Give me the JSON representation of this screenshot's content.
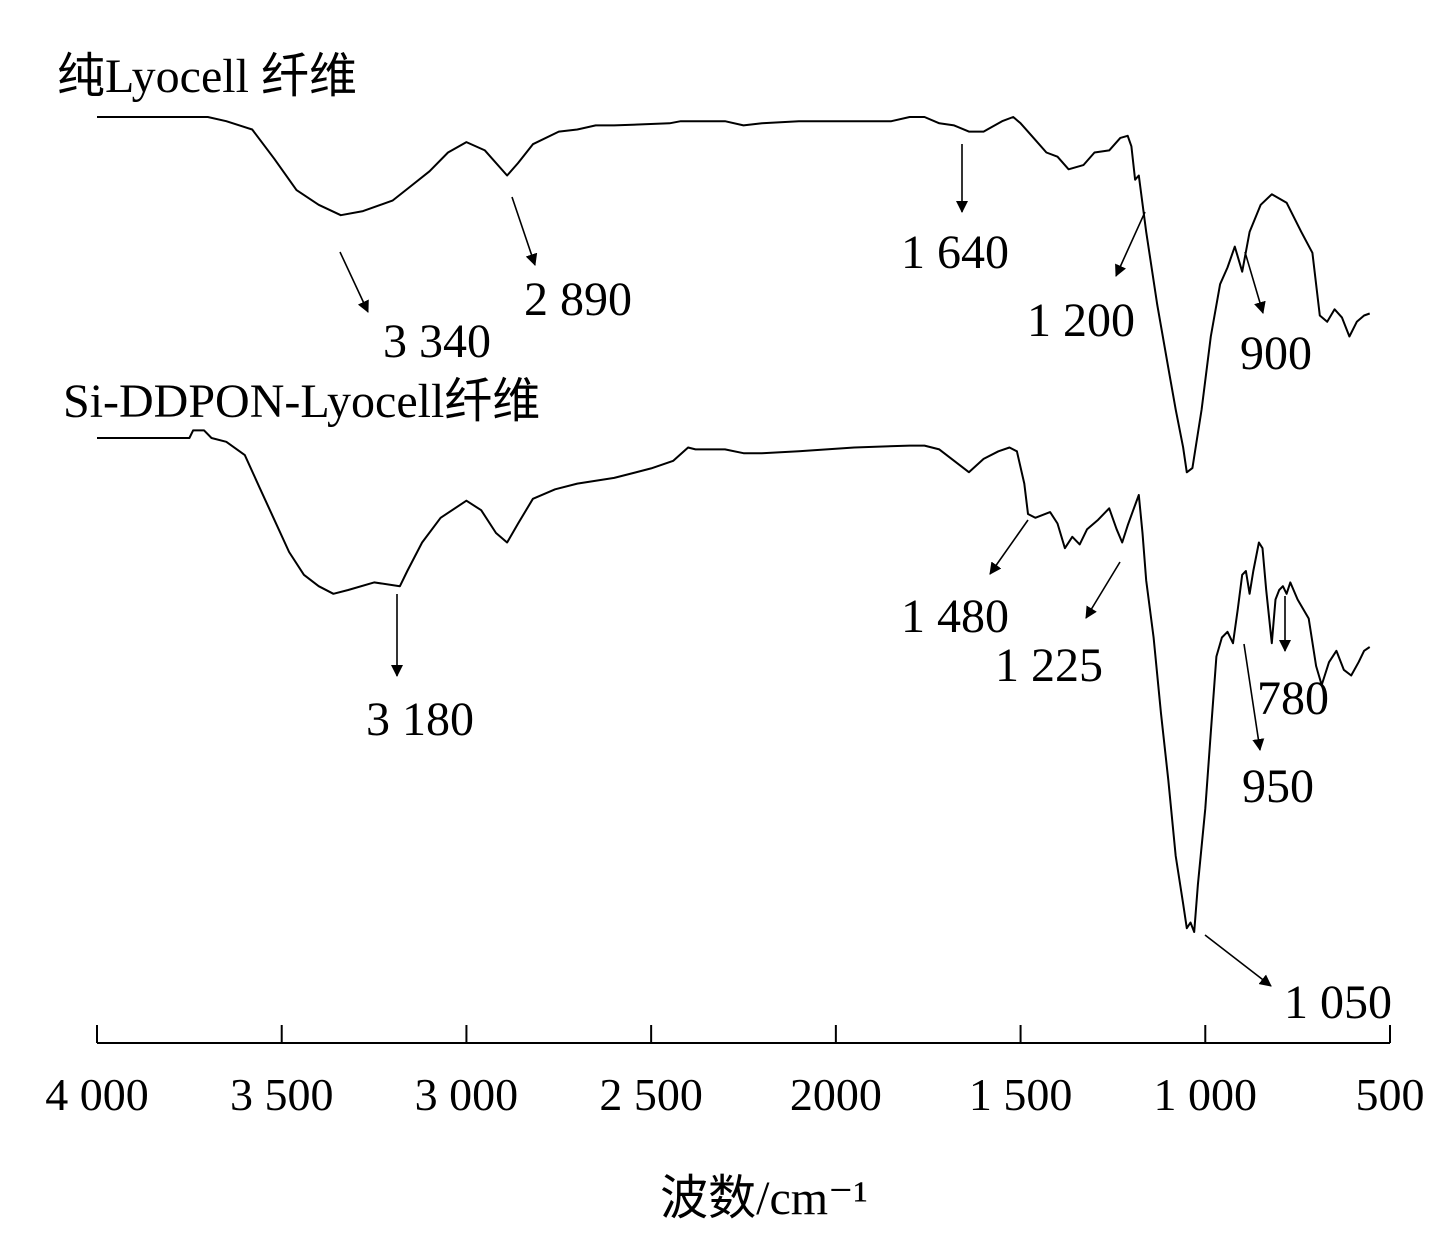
{
  "chart_data": {
    "type": "line",
    "title": "",
    "xlabel": "波数/cm⁻¹",
    "ylabel": "",
    "xlim": [
      4000,
      500
    ],
    "x_reversed": true,
    "grid": false,
    "xticks": [
      {
        "value": 4000,
        "label": "4 000"
      },
      {
        "value": 3500,
        "label": "3 500"
      },
      {
        "value": 3000,
        "label": "3 000"
      },
      {
        "value": 2500,
        "label": "2 500"
      },
      {
        "value": 2000,
        "label": "2000"
      },
      {
        "value": 1500,
        "label": "1 500"
      },
      {
        "value": 1000,
        "label": "1 000"
      },
      {
        "value": 500,
        "label": "500"
      }
    ],
    "series": [
      {
        "name": "纯Lyocell 纤维",
        "points": [
          [
            4000,
            0.0
          ],
          [
            3700,
            0.0
          ],
          [
            3650,
            -0.02
          ],
          [
            3580,
            -0.06
          ],
          [
            3520,
            -0.2
          ],
          [
            3460,
            -0.35
          ],
          [
            3400,
            -0.42
          ],
          [
            3340,
            -0.47
          ],
          [
            3280,
            -0.45
          ],
          [
            3200,
            -0.4
          ],
          [
            3150,
            -0.33
          ],
          [
            3100,
            -0.26
          ],
          [
            3050,
            -0.17
          ],
          [
            3000,
            -0.12
          ],
          [
            2950,
            -0.16
          ],
          [
            2890,
            -0.28
          ],
          [
            2860,
            -0.22
          ],
          [
            2820,
            -0.13
          ],
          [
            2750,
            -0.07
          ],
          [
            2700,
            -0.06
          ],
          [
            2650,
            -0.04
          ],
          [
            2600,
            -0.04
          ],
          [
            2450,
            -0.03
          ],
          [
            2420,
            -0.02
          ],
          [
            2300,
            -0.02
          ],
          [
            2250,
            -0.04
          ],
          [
            2200,
            -0.03
          ],
          [
            2100,
            -0.02
          ],
          [
            2000,
            -0.02
          ],
          [
            1850,
            -0.02
          ],
          [
            1800,
            0.0
          ],
          [
            1760,
            0.0
          ],
          [
            1720,
            -0.03
          ],
          [
            1680,
            -0.04
          ],
          [
            1640,
            -0.07
          ],
          [
            1600,
            -0.07
          ],
          [
            1550,
            -0.02
          ],
          [
            1520,
            0.0
          ],
          [
            1500,
            -0.03
          ],
          [
            1470,
            -0.09
          ],
          [
            1430,
            -0.17
          ],
          [
            1400,
            -0.19
          ],
          [
            1370,
            -0.25
          ],
          [
            1330,
            -0.23
          ],
          [
            1300,
            -0.17
          ],
          [
            1260,
            -0.16
          ],
          [
            1230,
            -0.1
          ],
          [
            1210,
            -0.09
          ],
          [
            1200,
            -0.14
          ],
          [
            1190,
            -0.3
          ],
          [
            1180,
            -0.28
          ],
          [
            1160,
            -0.55
          ],
          [
            1130,
            -0.9
          ],
          [
            1100,
            -1.2
          ],
          [
            1080,
            -1.4
          ],
          [
            1060,
            -1.58
          ],
          [
            1050,
            -1.7
          ],
          [
            1035,
            -1.68
          ],
          [
            1010,
            -1.4
          ],
          [
            985,
            -1.05
          ],
          [
            960,
            -0.8
          ],
          [
            940,
            -0.72
          ],
          [
            920,
            -0.62
          ],
          [
            900,
            -0.74
          ],
          [
            880,
            -0.55
          ],
          [
            850,
            -0.42
          ],
          [
            820,
            -0.37
          ],
          [
            780,
            -0.41
          ],
          [
            740,
            -0.55
          ],
          [
            710,
            -0.65
          ],
          [
            690,
            -0.95
          ],
          [
            670,
            -0.98
          ],
          [
            650,
            -0.92
          ],
          [
            630,
            -0.96
          ],
          [
            610,
            -1.05
          ],
          [
            590,
            -0.98
          ],
          [
            570,
            -0.95
          ],
          [
            555,
            -0.94
          ]
        ]
      },
      {
        "name": "Si-DDPON-Lyocell纤维",
        "points": [
          [
            4000,
            0.0
          ],
          [
            3750,
            0.0
          ],
          [
            3740,
            0.04
          ],
          [
            3710,
            0.04
          ],
          [
            3690,
            0.0
          ],
          [
            3650,
            -0.02
          ],
          [
            3600,
            -0.09
          ],
          [
            3560,
            -0.26
          ],
          [
            3520,
            -0.43
          ],
          [
            3480,
            -0.6
          ],
          [
            3440,
            -0.72
          ],
          [
            3400,
            -0.78
          ],
          [
            3360,
            -0.82
          ],
          [
            3320,
            -0.8
          ],
          [
            3250,
            -0.76
          ],
          [
            3180,
            -0.78
          ],
          [
            3160,
            -0.7
          ],
          [
            3120,
            -0.55
          ],
          [
            3070,
            -0.42
          ],
          [
            3000,
            -0.33
          ],
          [
            2960,
            -0.38
          ],
          [
            2920,
            -0.5
          ],
          [
            2890,
            -0.55
          ],
          [
            2860,
            -0.45
          ],
          [
            2820,
            -0.32
          ],
          [
            2760,
            -0.27
          ],
          [
            2700,
            -0.24
          ],
          [
            2600,
            -0.21
          ],
          [
            2500,
            -0.16
          ],
          [
            2440,
            -0.12
          ],
          [
            2400,
            -0.05
          ],
          [
            2380,
            -0.06
          ],
          [
            2300,
            -0.06
          ],
          [
            2250,
            -0.08
          ],
          [
            2200,
            -0.08
          ],
          [
            2100,
            -0.07
          ],
          [
            1950,
            -0.05
          ],
          [
            1800,
            -0.04
          ],
          [
            1760,
            -0.04
          ],
          [
            1720,
            -0.06
          ],
          [
            1680,
            -0.12
          ],
          [
            1640,
            -0.18
          ],
          [
            1600,
            -0.11
          ],
          [
            1560,
            -0.07
          ],
          [
            1530,
            -0.05
          ],
          [
            1510,
            -0.07
          ],
          [
            1490,
            -0.24
          ],
          [
            1480,
            -0.4
          ],
          [
            1460,
            -0.42
          ],
          [
            1420,
            -0.39
          ],
          [
            1400,
            -0.45
          ],
          [
            1380,
            -0.58
          ],
          [
            1360,
            -0.52
          ],
          [
            1340,
            -0.56
          ],
          [
            1320,
            -0.48
          ],
          [
            1290,
            -0.43
          ],
          [
            1260,
            -0.37
          ],
          [
            1240,
            -0.48
          ],
          [
            1225,
            -0.55
          ],
          [
            1210,
            -0.46
          ],
          [
            1195,
            -0.38
          ],
          [
            1180,
            -0.3
          ],
          [
            1170,
            -0.5
          ],
          [
            1160,
            -0.75
          ],
          [
            1140,
            -1.05
          ],
          [
            1120,
            -1.45
          ],
          [
            1100,
            -1.8
          ],
          [
            1080,
            -2.2
          ],
          [
            1060,
            -2.45
          ],
          [
            1050,
            -2.58
          ],
          [
            1040,
            -2.55
          ],
          [
            1030,
            -2.6
          ],
          [
            1020,
            -2.35
          ],
          [
            1000,
            -1.95
          ],
          [
            985,
            -1.55
          ],
          [
            970,
            -1.15
          ],
          [
            955,
            -1.05
          ],
          [
            940,
            -1.02
          ],
          [
            925,
            -1.08
          ],
          [
            912,
            -0.9
          ],
          [
            900,
            -0.72
          ],
          [
            890,
            -0.7
          ],
          [
            880,
            -0.82
          ],
          [
            870,
            -0.7
          ],
          [
            855,
            -0.55
          ],
          [
            845,
            -0.58
          ],
          [
            835,
            -0.8
          ],
          [
            820,
            -1.08
          ],
          [
            810,
            -0.85
          ],
          [
            800,
            -0.8
          ],
          [
            790,
            -0.78
          ],
          [
            780,
            -0.82
          ],
          [
            770,
            -0.76
          ],
          [
            750,
            -0.85
          ],
          [
            720,
            -0.95
          ],
          [
            700,
            -1.2
          ],
          [
            685,
            -1.3
          ],
          [
            665,
            -1.18
          ],
          [
            645,
            -1.12
          ],
          [
            625,
            -1.22
          ],
          [
            605,
            -1.25
          ],
          [
            585,
            -1.18
          ],
          [
            570,
            -1.12
          ],
          [
            555,
            -1.1
          ]
        ]
      }
    ],
    "annotations": [
      {
        "series": 0,
        "label": "3 340",
        "x": 3340
      },
      {
        "series": 0,
        "label": "2 890",
        "x": 2890
      },
      {
        "series": 0,
        "label": "1 640",
        "x": 1640
      },
      {
        "series": 0,
        "label": "1 200",
        "x": 1200
      },
      {
        "series": 0,
        "label": "900",
        "x": 900
      },
      {
        "series": 1,
        "label": "3 180",
        "x": 3180
      },
      {
        "series": 1,
        "label": "1 480",
        "x": 1480
      },
      {
        "series": 1,
        "label": "1 225",
        "x": 1225
      },
      {
        "series": 1,
        "label": "780",
        "x": 780
      },
      {
        "series": 1,
        "label": "950",
        "x": 950
      },
      {
        "series": 1,
        "label": "1 050",
        "x": 1050
      }
    ]
  }
}
